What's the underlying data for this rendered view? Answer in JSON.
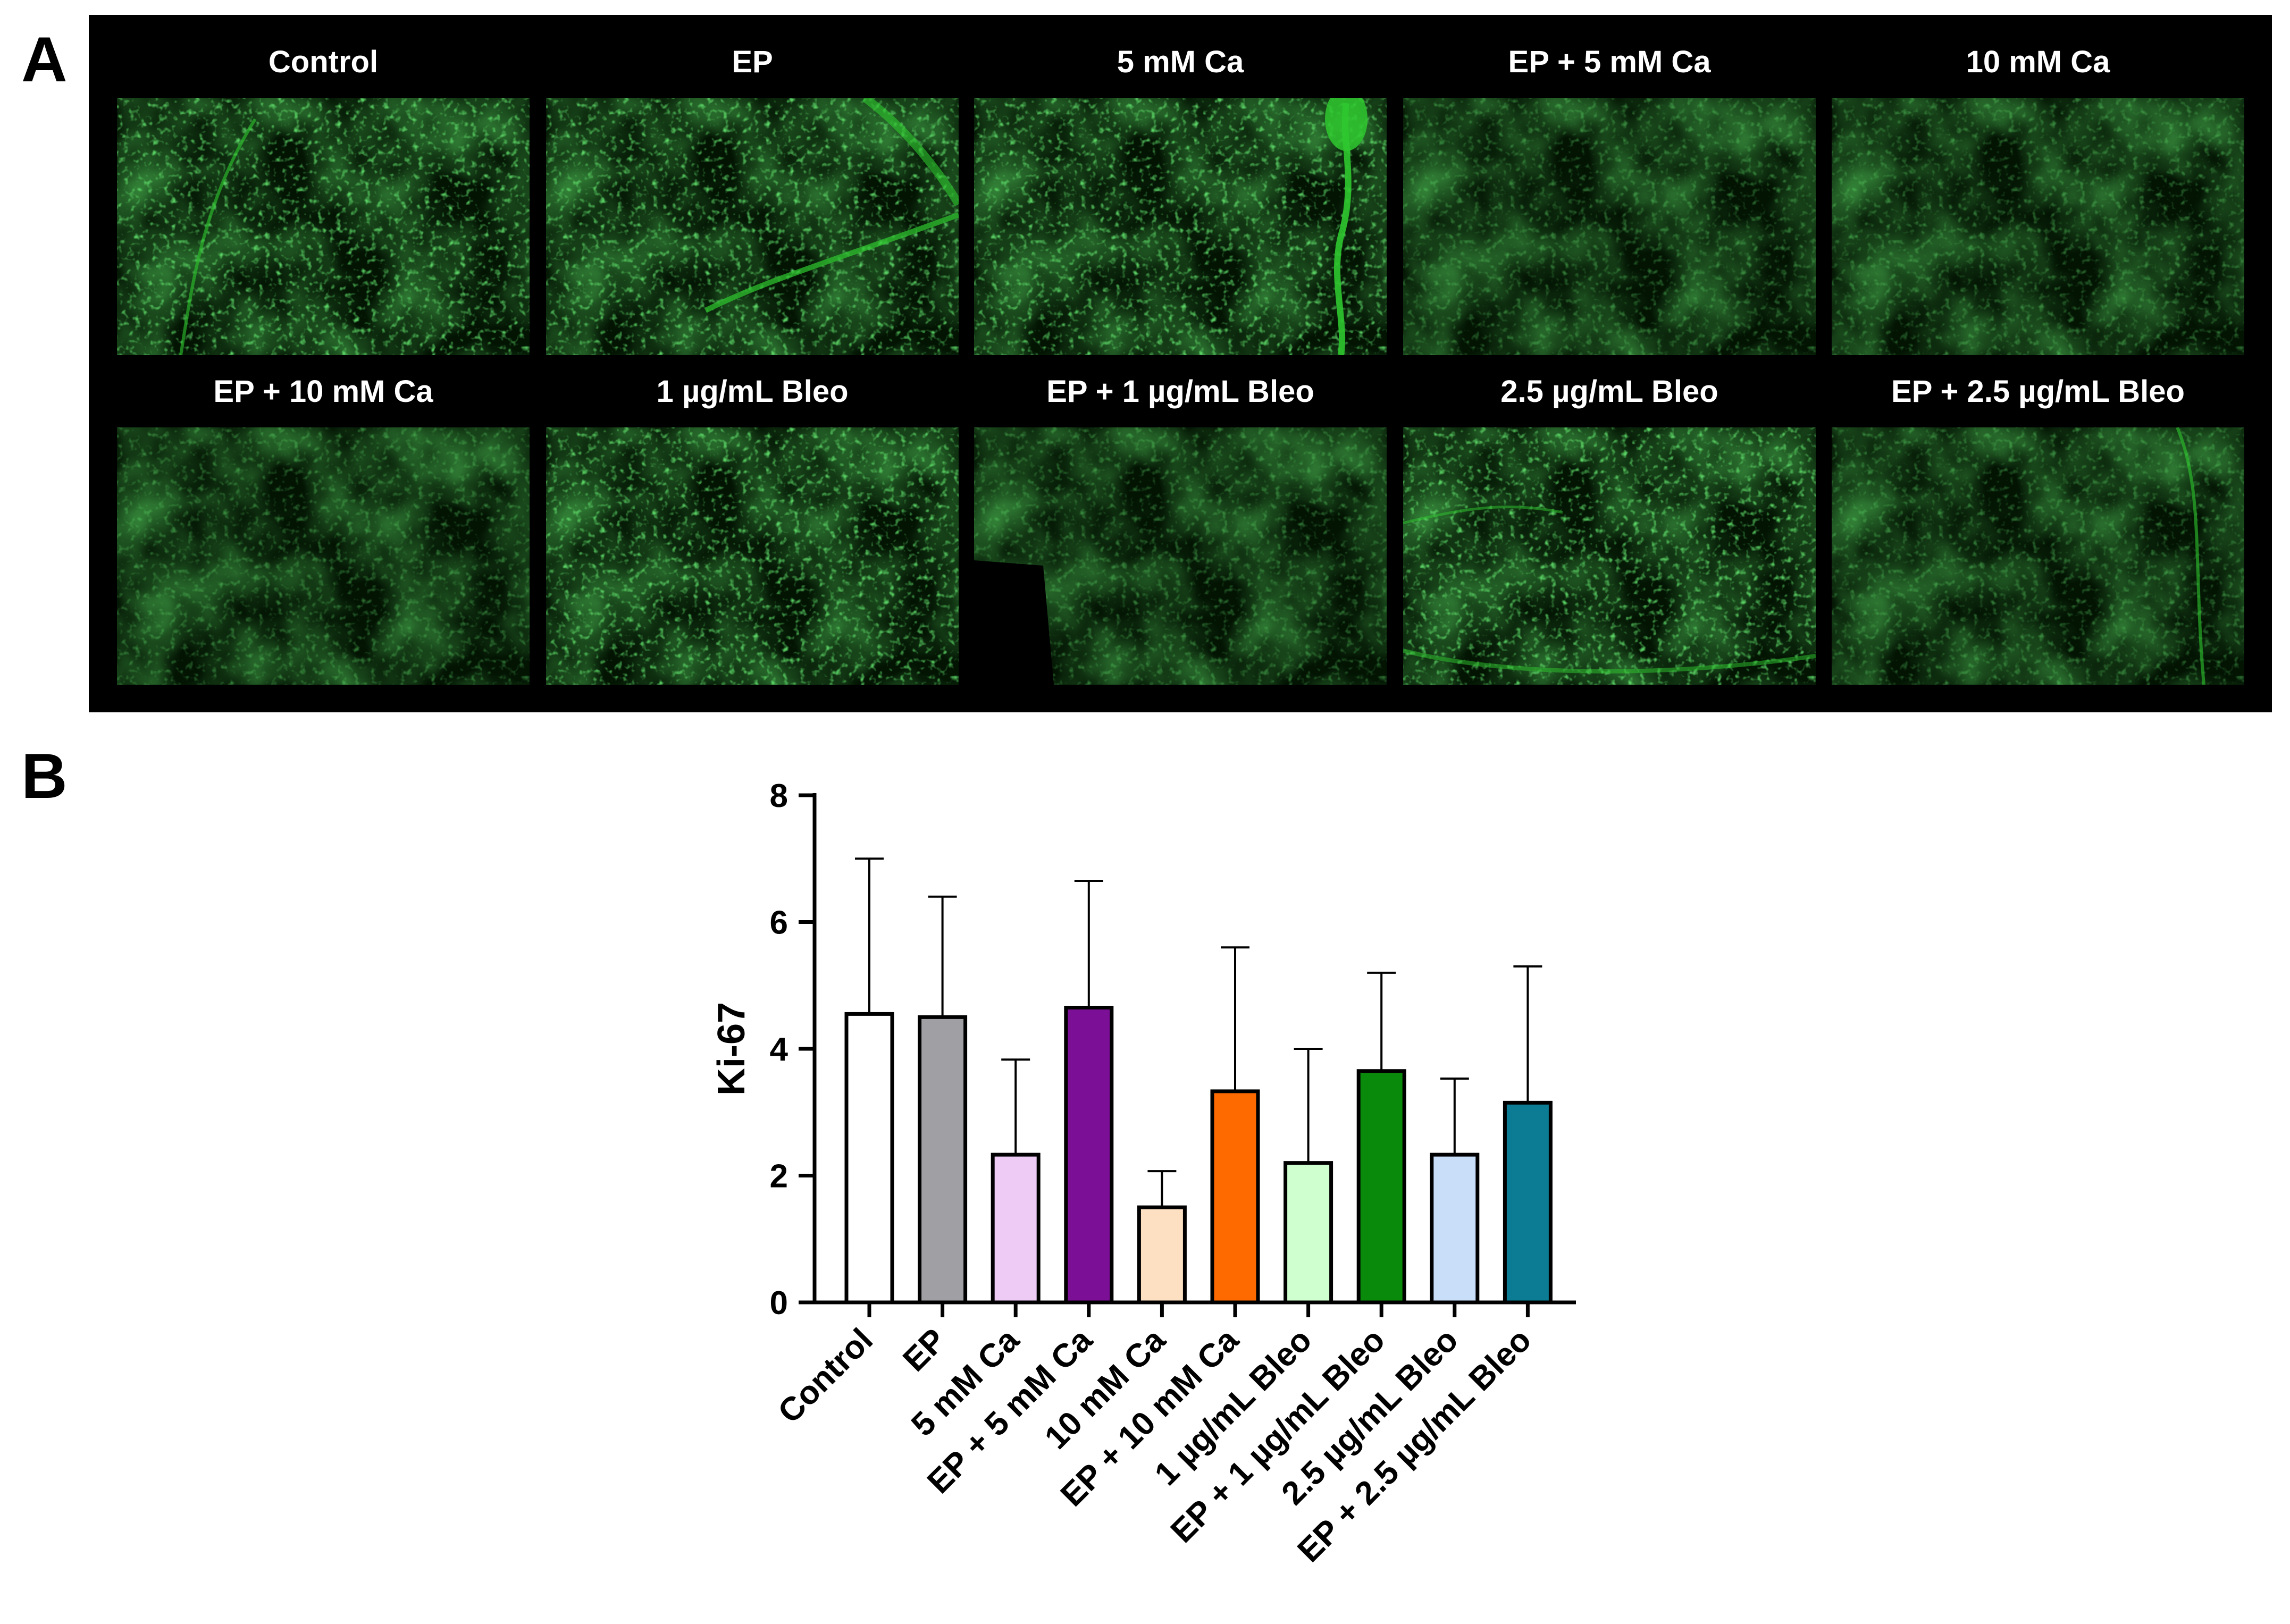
{
  "panel_a": {
    "letter": "A",
    "images": [
      {
        "label": "Control",
        "pattern": "grainy-edge"
      },
      {
        "label": "EP",
        "pattern": "bright-corner"
      },
      {
        "label": "5 mM Ca",
        "pattern": "bright-edge"
      },
      {
        "label": "EP + 5 mM Ca",
        "pattern": "diffuse"
      },
      {
        "label": "10 mM Ca",
        "pattern": "faint"
      },
      {
        "label": "EP + 10 mM Ca",
        "pattern": "diffuse"
      },
      {
        "label": "1 µg/mL Bleo",
        "pattern": "grainy-corner"
      },
      {
        "label": "EP + 1 µg/mL Bleo",
        "pattern": "diffuse-dark-left"
      },
      {
        "label": "2.5 µg/mL Bleo",
        "pattern": "grainy-rim"
      },
      {
        "label": "EP + 2.5 µg/mL Bleo",
        "pattern": "edge-line"
      }
    ],
    "background_color": "#000000",
    "stain_color": "#2fc82f"
  },
  "panel_b": {
    "letter": "B"
  },
  "chart_data": {
    "type": "bar",
    "title": "",
    "xlabel": "",
    "ylabel": "Ki-67",
    "ylim": [
      0,
      8
    ],
    "yticks": [
      0,
      2,
      4,
      6,
      8
    ],
    "categories": [
      "Control",
      "EP",
      "5 mM Ca",
      "EP + 5 mM Ca",
      "10 mM Ca",
      "EP + 10 mM Ca",
      "1 µg/mL Bleo",
      "EP + 1 µg/mL Bleo",
      "2.5 µg/mL Bleo",
      "EP + 2.5 µg/mL Bleo"
    ],
    "values": [
      4.55,
      4.5,
      2.33,
      4.65,
      1.5,
      3.33,
      2.2,
      3.65,
      2.33,
      3.15
    ],
    "error_upper": [
      2.45,
      1.9,
      1.5,
      2.0,
      0.57,
      2.27,
      1.8,
      1.55,
      1.2,
      2.15
    ],
    "colors": [
      "#ffffff",
      "#a0a0a4",
      "#eecbf5",
      "#7b0f96",
      "#fde0c2",
      "#ff6a00",
      "#cfffcf",
      "#0a8a0a",
      "#c9def8",
      "#0b7c94"
    ],
    "grid": false,
    "legend": "none"
  }
}
